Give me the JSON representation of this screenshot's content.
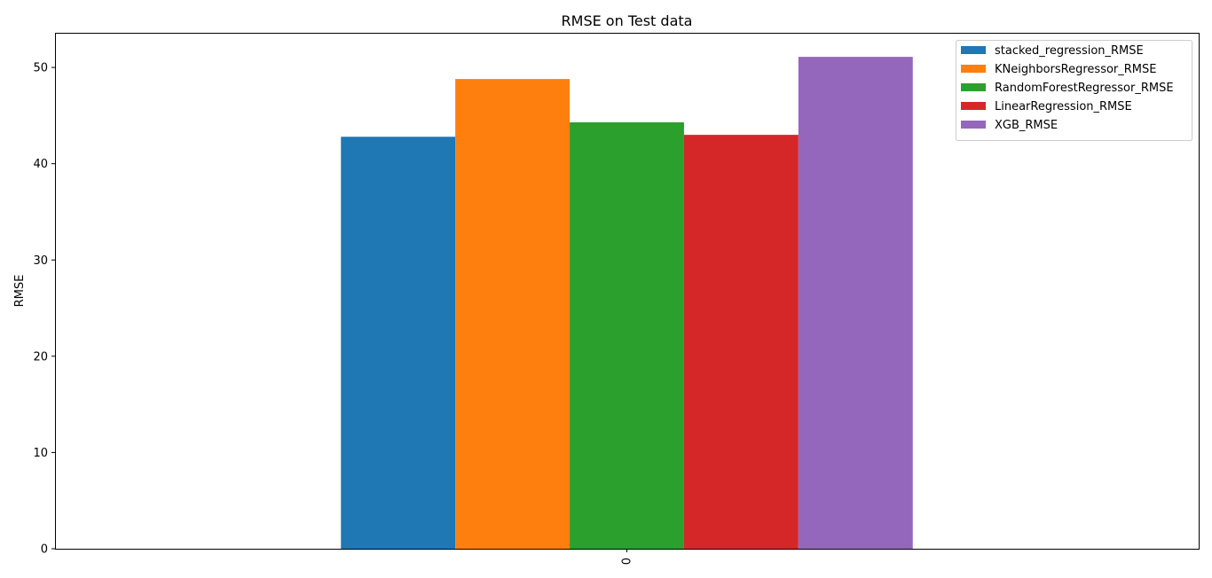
{
  "chart_data": {
    "type": "bar",
    "title": "RMSE on Test data",
    "xlabel": "",
    "ylabel": "RMSE",
    "categories": [
      "0"
    ],
    "series": [
      {
        "name": "stacked_regression_RMSE",
        "values": [
          42.8
        ],
        "color": "#1f77b4"
      },
      {
        "name": "KNeighborsRegressor_RMSE",
        "values": [
          48.8
        ],
        "color": "#ff7f0e"
      },
      {
        "name": "RandomForestRegressor_RMSE",
        "values": [
          44.3
        ],
        "color": "#2ca02c"
      },
      {
        "name": "LinearRegression_RMSE",
        "values": [
          43.0
        ],
        "color": "#d62728"
      },
      {
        "name": "XGB_RMSE",
        "values": [
          51.1
        ],
        "color": "#9467bd"
      }
    ],
    "yticks": [
      0,
      10,
      20,
      30,
      40,
      50
    ],
    "ylim": [
      0,
      53.6
    ],
    "grid": false,
    "legend_position": "top-right"
  }
}
